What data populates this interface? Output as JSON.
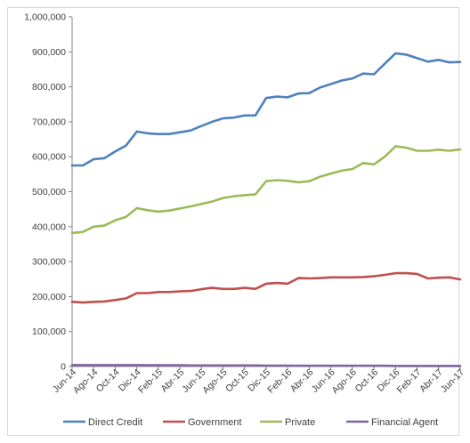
{
  "chart_data": {
    "type": "line",
    "title": "",
    "xlabel": "",
    "ylabel": "",
    "ylim": [
      0,
      1000000
    ],
    "y_ticks": [
      "0",
      "100,000",
      "200,000",
      "300,000",
      "400,000",
      "500,000",
      "600,000",
      "700,000",
      "800,000",
      "900,000",
      "1,000,000"
    ],
    "y_tick_values": [
      0,
      100000,
      200000,
      300000,
      400000,
      500000,
      600000,
      700000,
      800000,
      900000,
      1000000
    ],
    "x_tick_labels": [
      "Jun-14",
      "Ago-14",
      "Oct-14",
      "Dic-14",
      "Feb-15",
      "Abr-15",
      "Jun-15",
      "Ago-15",
      "Oct-15",
      "Dic-15",
      "Feb-16",
      "Abr-16",
      "Jun-16",
      "Ago-16",
      "Oct-16",
      "Dic-16",
      "Feb-17",
      "Abr-17",
      "Jun-17"
    ],
    "categories": [
      "Jun-14",
      "Jul-14",
      "Ago-14",
      "Sep-14",
      "Oct-14",
      "Nov-14",
      "Dic-14",
      "Ene-15",
      "Feb-15",
      "Mar-15",
      "Abr-15",
      "May-15",
      "Jun-15",
      "Jul-15",
      "Ago-15",
      "Sep-15",
      "Oct-15",
      "Nov-15",
      "Dic-15",
      "Ene-16",
      "Feb-16",
      "Mar-16",
      "Abr-16",
      "May-16",
      "Jun-16",
      "Jul-16",
      "Ago-16",
      "Sep-16",
      "Oct-16",
      "Nov-16",
      "Dic-16",
      "Ene-17",
      "Feb-17",
      "Mar-17",
      "Abr-17",
      "May-17",
      "Jun-17"
    ],
    "grid": false,
    "legend_position": "bottom",
    "series": [
      {
        "name": "Direct Credit",
        "color": "#4f81bd",
        "values": [
          575000,
          575000,
          593000,
          596000,
          615000,
          632000,
          672000,
          667000,
          665000,
          665000,
          670000,
          675000,
          688000,
          700000,
          710000,
          712000,
          718000,
          718000,
          768000,
          772000,
          770000,
          781000,
          782000,
          798000,
          808000,
          818000,
          824000,
          838000,
          836000,
          866000,
          896000,
          892000,
          882000,
          872000,
          877000,
          870000,
          871000
        ]
      },
      {
        "name": "Government",
        "color": "#c0504d",
        "values": [
          185000,
          183000,
          185000,
          186000,
          190000,
          195000,
          210000,
          210000,
          213000,
          213000,
          215000,
          216000,
          221000,
          225000,
          222000,
          222000,
          225000,
          222000,
          237000,
          239000,
          237000,
          253000,
          252000,
          253000,
          255000,
          255000,
          255000,
          256000,
          258000,
          262000,
          267000,
          267000,
          265000,
          252000,
          254000,
          255000,
          249000
        ]
      },
      {
        "name": "Private",
        "color": "#9bbb59",
        "values": [
          382000,
          385000,
          400000,
          403000,
          418000,
          428000,
          453000,
          447000,
          443000,
          446000,
          452000,
          458000,
          465000,
          472000,
          482000,
          487000,
          490000,
          492000,
          530000,
          533000,
          531000,
          527000,
          530000,
          543000,
          552000,
          560000,
          565000,
          582000,
          578000,
          600000,
          630000,
          626000,
          617000,
          617000,
          620000,
          617000,
          621000
        ]
      },
      {
        "name": "Financial Agent",
        "color": "#8064a2",
        "values": [
          4000,
          4000,
          4000,
          4000,
          4000,
          4000,
          4000,
          3500,
          3500,
          3500,
          3500,
          3000,
          3000,
          3000,
          3000,
          3000,
          3000,
          3000,
          2500,
          2500,
          2500,
          2000,
          2000,
          2000,
          2000,
          2000,
          2000,
          2000,
          2000,
          2000,
          1500,
          1500,
          1500,
          1500,
          1500,
          1500,
          1500
        ]
      }
    ]
  }
}
